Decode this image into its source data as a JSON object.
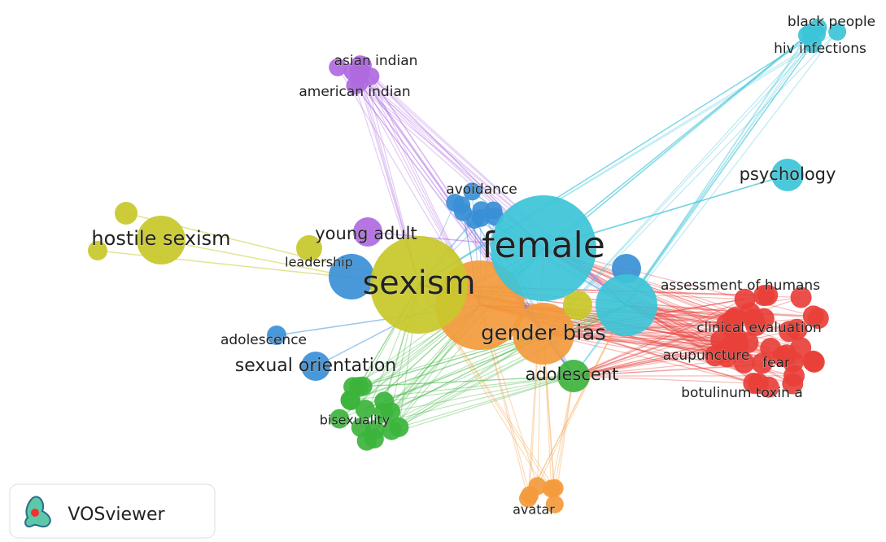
{
  "nodes": [
    {
      "label": "black people"
    },
    {
      "label": "hiv infections"
    },
    {
      "label": "asian indian"
    },
    {
      "label": "american indian"
    },
    {
      "label": "psychology"
    },
    {
      "label": "avoidance"
    },
    {
      "label": "hostile sexism"
    },
    {
      "label": "young adult"
    },
    {
      "label": "female"
    },
    {
      "label": "leadership"
    },
    {
      "label": "sexism"
    },
    {
      "label": "assessment of humans"
    },
    {
      "label": "gender bias"
    },
    {
      "label": "clinical evaluation"
    },
    {
      "label": "adolescence"
    },
    {
      "label": "acupuncture"
    },
    {
      "label": "fear"
    },
    {
      "label": "sexual orientation"
    },
    {
      "label": "adolescent"
    },
    {
      "label": "botulinum toxin a"
    },
    {
      "label": "bisexuality"
    },
    {
      "label": "avatar"
    }
  ],
  "logo": "VOSviewer"
}
